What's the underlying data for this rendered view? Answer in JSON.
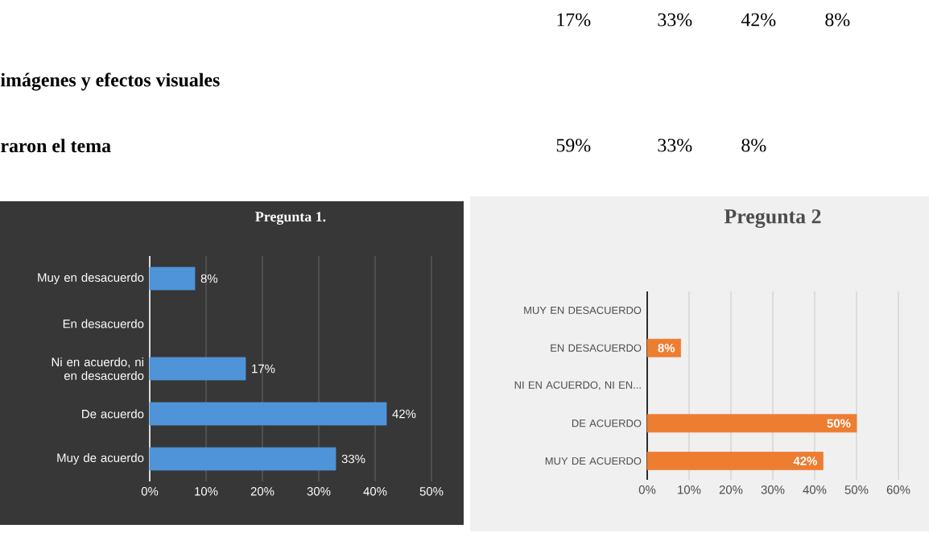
{
  "chart_data": [
    {
      "type": "other",
      "annotations": [
        "17%",
        "33%",
        "42%",
        "8%",
        "imágenes y efectos visuales",
        "raron  el tema",
        "59%",
        "33%",
        "8%"
      ]
    },
    {
      "type": "bar",
      "orientation": "horizontal",
      "title": "Pregunta 1.",
      "categories": [
        "Muy en desacuerdo",
        "En desacuerdo",
        "Ni en acuerdo, ni en desacuerdo",
        "De acuerdo",
        "Muy de acuerdo"
      ],
      "values": [
        8,
        null,
        17,
        42,
        33
      ],
      "value_labels": [
        "8%",
        null,
        "17%",
        "42%",
        "33%"
      ],
      "color": "#4f94d8",
      "xlim": [
        0,
        50
      ],
      "xticks": [
        {
          "value": 0,
          "label": "0%"
        },
        {
          "value": 10,
          "label": "10%"
        },
        {
          "value": 20,
          "label": "20%"
        },
        {
          "value": 30,
          "label": "30%"
        },
        {
          "value": 40,
          "label": "40%"
        },
        {
          "value": 50,
          "label": "50%"
        }
      ],
      "grid": "x"
    },
    {
      "type": "bar",
      "orientation": "horizontal",
      "title": "Pregunta 2",
      "categories": [
        "MUY EN DESACUERDO",
        "EN DESACUERDO",
        "NI EN ACUERDO, NI EN...",
        "DE ACUERDO",
        "MUY DE ACUERDO"
      ],
      "values": [
        null,
        8,
        null,
        50,
        42
      ],
      "value_labels": [
        null,
        "8%",
        null,
        "50%",
        "42%"
      ],
      "color": "#ed7d31",
      "xlim": [
        0,
        60
      ],
      "xticks": [
        {
          "value": 0,
          "label": "0%"
        },
        {
          "value": 10,
          "label": "10%"
        },
        {
          "value": 20,
          "label": "20%"
        },
        {
          "value": 30,
          "label": "30%"
        },
        {
          "value": 40,
          "label": "40%"
        },
        {
          "value": 50,
          "label": "50%"
        },
        {
          "value": 60,
          "label": "60%"
        }
      ],
      "grid": "x"
    }
  ]
}
